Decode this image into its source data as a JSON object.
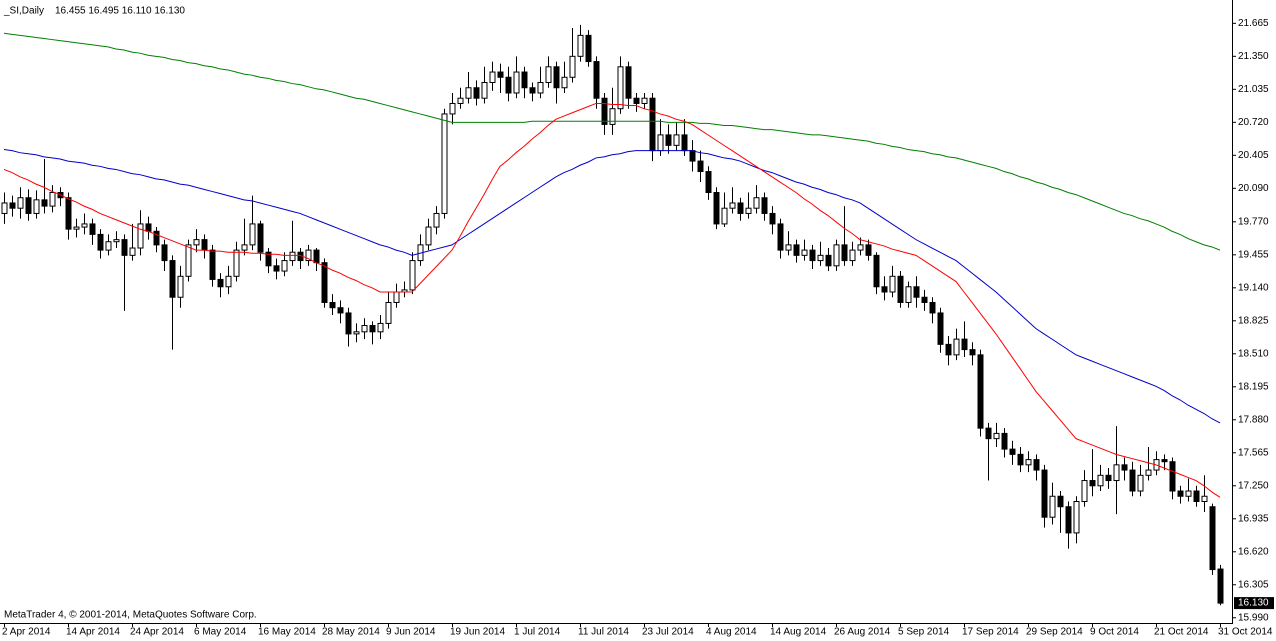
{
  "chart_data": {
    "type": "candlestick",
    "symbol": "_SI,Daily",
    "ohlc_label": "16.455 16.495 16.110 16.130",
    "last_price_label": "16.130",
    "footer": "MetaTrader 4, © 2001-2014, MetaQuotes Software Corp.",
    "up_color": "#ffffff",
    "down_color": "#000000",
    "outline_color": "#000000",
    "grid": false,
    "ylim": [
      15.94,
      21.84
    ],
    "yticks": [
      {
        "value": 15.99,
        "label": "15.990"
      },
      16.305,
      {
        "value": 16.62,
        "label": "16.620"
      },
      16.935,
      {
        "value": 17.25,
        "label": "17.250"
      },
      17.565,
      {
        "value": 17.88,
        "label": "17.880"
      },
      18.195,
      {
        "value": 18.51,
        "label": "18.510"
      },
      18.825,
      {
        "value": 19.14,
        "label": "19.140"
      },
      19.455,
      {
        "value": 19.77,
        "label": "19.770"
      },
      {
        "value": 20.09,
        "label": "20.090"
      },
      20.405,
      {
        "value": 20.72,
        "label": "20.720"
      },
      21.035,
      {
        "value": 21.35,
        "label": "21.350"
      },
      21.665
    ],
    "categories": [
      "2 Apr 2014",
      null,
      null,
      null,
      null,
      null,
      null,
      null,
      "14 Apr 2014",
      null,
      null,
      null,
      null,
      null,
      null,
      null,
      "24 Apr 2014",
      null,
      null,
      null,
      null,
      null,
      null,
      null,
      "6 May 2014",
      null,
      null,
      null,
      null,
      null,
      null,
      null,
      "16 May 2014",
      null,
      null,
      null,
      null,
      null,
      null,
      null,
      "28 May 2014",
      null,
      null,
      null,
      null,
      null,
      null,
      null,
      "9 Jun 2014",
      null,
      null,
      null,
      null,
      null,
      null,
      null,
      "19 Jun 2014",
      null,
      null,
      null,
      null,
      null,
      null,
      null,
      "1 Jul 2014",
      null,
      null,
      null,
      null,
      null,
      null,
      null,
      "11 Jul 2014",
      null,
      null,
      null,
      null,
      null,
      null,
      null,
      "23 Jul 2014",
      null,
      null,
      null,
      null,
      null,
      null,
      null,
      "4 Aug 2014",
      null,
      null,
      null,
      null,
      null,
      null,
      null,
      "14 Aug 2014",
      null,
      null,
      null,
      null,
      null,
      null,
      null,
      "26 Aug 2014",
      null,
      null,
      null,
      null,
      null,
      null,
      null,
      "5 Sep 2014",
      null,
      null,
      null,
      null,
      null,
      null,
      null,
      "17 Sep 2014",
      null,
      null,
      null,
      null,
      null,
      null,
      null,
      "29 Sep 2014",
      null,
      null,
      null,
      null,
      null,
      null,
      null,
      "9 Oct 2014",
      null,
      null,
      null,
      null,
      null,
      null,
      null,
      "21 Oct 2014",
      null,
      null,
      null,
      null,
      null,
      null,
      null,
      "31 Oct 2014"
    ],
    "open": [
      19.85,
      19.95,
      19.9,
      20.0,
      19.85,
      19.98,
      19.92,
      20.05,
      20.0,
      19.7,
      19.72,
      19.75,
      19.65,
      19.5,
      19.58,
      19.6,
      19.45,
      19.52,
      19.75,
      19.68,
      19.55,
      19.4,
      19.05,
      19.25,
      19.55,
      19.6,
      19.5,
      19.22,
      19.15,
      19.25,
      19.5,
      19.55,
      19.75,
      19.48,
      19.35,
      19.3,
      19.4,
      19.48,
      19.4,
      19.5,
      19.38,
      19.0,
      18.95,
      18.9,
      18.7,
      18.72,
      18.78,
      18.72,
      18.8,
      19.0,
      19.1,
      19.12,
      19.4,
      19.55,
      19.72,
      19.85,
      20.8,
      20.9,
      20.95,
      21.05,
      20.95,
      21.1,
      21.2,
      21.15,
      21.0,
      21.2,
      21.05,
      21.0,
      21.1,
      21.25,
      21.05,
      21.15,
      21.35,
      21.55,
      21.3,
      20.95,
      20.7,
      20.85,
      21.25,
      20.95,
      20.9,
      20.95,
      20.45,
      20.6,
      20.5,
      20.6,
      20.45,
      20.35,
      20.25,
      20.05,
      19.75,
      19.9,
      19.95,
      19.85,
      19.9,
      20.0,
      19.85,
      19.75,
      19.5,
      19.55,
      19.45,
      19.5,
      19.4,
      19.45,
      19.35,
      19.55,
      19.4,
      19.5,
      19.55,
      19.45,
      19.15,
      19.1,
      19.25,
      19.0,
      19.15,
      19.05,
      19.0,
      18.9,
      18.6,
      18.5,
      18.65,
      18.55,
      18.5,
      17.8,
      17.7,
      17.75,
      17.6,
      17.55,
      17.45,
      17.5,
      17.4,
      16.95,
      17.15,
      17.05,
      16.8,
      17.1,
      17.3,
      17.25,
      17.35,
      17.3,
      17.45,
      17.4,
      17.2,
      17.35,
      17.4,
      17.5,
      17.48,
      17.2,
      17.15,
      17.2,
      17.1,
      17.05,
      16.455
    ],
    "high": [
      20.05,
      20.02,
      20.1,
      20.08,
      20.07,
      20.37,
      20.12,
      20.1,
      20.05,
      19.8,
      19.85,
      19.8,
      19.7,
      19.65,
      19.68,
      19.65,
      19.75,
      19.88,
      19.82,
      19.72,
      19.6,
      19.45,
      19.35,
      19.6,
      19.7,
      19.65,
      19.55,
      19.28,
      19.35,
      19.58,
      19.8,
      20.02,
      19.78,
      19.52,
      19.42,
      19.48,
      19.78,
      19.52,
      19.55,
      19.52,
      19.42,
      19.08,
      19.02,
      18.95,
      18.8,
      18.85,
      18.82,
      18.88,
      19.1,
      19.18,
      19.2,
      19.48,
      19.65,
      19.8,
      19.92,
      20.85,
      21.0,
      21.05,
      21.2,
      21.12,
      21.25,
      21.3,
      21.28,
      21.25,
      21.35,
      21.25,
      21.1,
      21.25,
      21.35,
      21.3,
      21.3,
      21.62,
      21.65,
      21.6,
      21.35,
      21.0,
      21.05,
      21.35,
      21.3,
      21.0,
      21.0,
      21.0,
      20.75,
      20.7,
      20.72,
      20.75,
      20.55,
      20.45,
      20.3,
      20.1,
      20.05,
      20.1,
      20.0,
      20.05,
      20.12,
      20.05,
      19.92,
      19.8,
      19.68,
      19.6,
      19.6,
      19.55,
      19.58,
      19.52,
      19.6,
      19.92,
      19.58,
      19.62,
      19.6,
      19.48,
      19.25,
      19.35,
      19.3,
      19.2,
      19.25,
      19.12,
      19.05,
      18.95,
      18.68,
      18.75,
      18.82,
      18.62,
      18.55,
      17.85,
      17.85,
      17.8,
      17.68,
      17.62,
      17.58,
      17.55,
      17.45,
      17.28,
      17.2,
      17.1,
      17.15,
      17.4,
      17.6,
      17.45,
      17.42,
      17.82,
      17.52,
      17.48,
      17.45,
      17.62,
      17.58,
      17.55,
      17.52,
      17.25,
      17.32,
      17.25,
      17.35,
      17.08,
      16.495
    ],
    "low": [
      19.75,
      19.82,
      19.8,
      19.78,
      19.8,
      19.85,
      19.86,
      19.92,
      19.6,
      19.62,
      19.65,
      19.55,
      19.42,
      19.45,
      19.52,
      18.92,
      19.4,
      19.45,
      19.6,
      19.48,
      19.3,
      18.55,
      18.95,
      19.2,
      19.48,
      19.42,
      19.15,
      19.05,
      19.08,
      19.2,
      19.45,
      19.5,
      19.4,
      19.28,
      19.22,
      19.25,
      19.35,
      19.32,
      19.35,
      19.3,
      18.95,
      18.88,
      18.8,
      18.58,
      18.62,
      18.65,
      18.6,
      18.65,
      18.75,
      18.95,
      19.05,
      19.08,
      19.35,
      19.5,
      19.65,
      19.8,
      20.7,
      20.85,
      20.9,
      20.88,
      20.9,
      21.02,
      21.0,
      20.92,
      20.95,
      20.95,
      20.92,
      20.95,
      21.05,
      20.9,
      21.0,
      21.1,
      21.3,
      21.25,
      20.85,
      20.6,
      20.6,
      20.8,
      20.85,
      20.82,
      20.85,
      20.35,
      20.4,
      20.42,
      20.45,
      20.4,
      20.25,
      20.15,
      19.98,
      19.7,
      19.72,
      19.85,
      19.78,
      19.8,
      19.85,
      19.78,
      19.65,
      19.42,
      19.45,
      19.38,
      19.4,
      19.32,
      19.35,
      19.3,
      19.3,
      19.35,
      19.35,
      19.45,
      19.4,
      19.08,
      19.02,
      19.05,
      18.95,
      18.95,
      18.95,
      18.92,
      18.8,
      18.52,
      18.4,
      18.45,
      18.48,
      18.4,
      17.72,
      17.3,
      17.62,
      17.52,
      17.45,
      17.38,
      17.38,
      17.3,
      16.85,
      16.88,
      16.8,
      16.65,
      16.7,
      17.05,
      17.15,
      17.2,
      17.22,
      16.98,
      17.3,
      17.15,
      17.15,
      17.3,
      17.35,
      17.4,
      17.12,
      17.08,
      17.1,
      17.05,
      17.0,
      16.4,
      16.11
    ],
    "close": [
      19.95,
      19.9,
      20.0,
      19.85,
      19.98,
      19.92,
      20.05,
      20.0,
      19.7,
      19.72,
      19.75,
      19.65,
      19.5,
      19.58,
      19.6,
      19.45,
      19.52,
      19.75,
      19.68,
      19.55,
      19.4,
      19.05,
      19.25,
      19.55,
      19.6,
      19.5,
      19.22,
      19.15,
      19.25,
      19.5,
      19.55,
      19.75,
      19.48,
      19.35,
      19.3,
      19.4,
      19.48,
      19.4,
      19.5,
      19.38,
      19.0,
      18.95,
      18.9,
      18.7,
      18.72,
      18.78,
      18.72,
      18.8,
      19.0,
      19.1,
      19.12,
      19.4,
      19.55,
      19.72,
      19.85,
      20.8,
      20.9,
      20.95,
      21.05,
      20.95,
      21.1,
      21.2,
      21.15,
      21.0,
      21.2,
      21.05,
      21.0,
      21.1,
      21.25,
      21.05,
      21.15,
      21.35,
      21.55,
      21.3,
      20.95,
      20.7,
      20.85,
      21.25,
      20.95,
      20.9,
      20.95,
      20.45,
      20.6,
      20.5,
      20.6,
      20.45,
      20.35,
      20.25,
      20.05,
      19.75,
      19.9,
      19.95,
      19.85,
      19.9,
      20.0,
      19.85,
      19.75,
      19.5,
      19.55,
      19.45,
      19.5,
      19.4,
      19.45,
      19.35,
      19.55,
      19.4,
      19.5,
      19.55,
      19.45,
      19.15,
      19.1,
      19.25,
      19.0,
      19.15,
      19.05,
      19.0,
      18.9,
      18.6,
      18.5,
      18.65,
      18.55,
      18.5,
      17.8,
      17.7,
      17.75,
      17.6,
      17.55,
      17.45,
      17.5,
      17.4,
      16.95,
      17.15,
      17.05,
      16.8,
      17.1,
      17.3,
      17.25,
      17.35,
      17.3,
      17.45,
      17.4,
      17.2,
      17.35,
      17.4,
      17.5,
      17.48,
      17.2,
      17.15,
      17.2,
      17.1,
      17.15,
      16.45,
      16.13
    ],
    "series": [
      {
        "color": "#008000",
        "values": [
          21.57,
          21.56,
          21.55,
          21.54,
          21.53,
          21.52,
          21.51,
          21.5,
          21.49,
          21.48,
          21.47,
          21.46,
          21.45,
          21.44,
          21.42,
          21.41,
          21.39,
          21.38,
          21.36,
          21.35,
          21.34,
          21.32,
          21.31,
          21.29,
          21.28,
          21.26,
          21.25,
          21.23,
          21.22,
          21.2,
          21.18,
          21.17,
          21.15,
          21.14,
          21.12,
          21.11,
          21.09,
          21.08,
          21.06,
          21.04,
          21.03,
          21.01,
          20.99,
          20.97,
          20.95,
          20.94,
          20.92,
          20.9,
          20.88,
          20.86,
          20.84,
          20.82,
          20.8,
          20.78,
          20.76,
          20.74,
          20.72,
          20.72,
          20.72,
          20.72,
          20.72,
          20.72,
          20.72,
          20.72,
          20.72,
          20.72,
          20.73,
          20.73,
          20.73,
          20.73,
          20.73,
          20.73,
          20.73,
          20.73,
          20.73,
          20.73,
          20.73,
          20.73,
          20.73,
          20.73,
          20.73,
          20.73,
          20.73,
          20.72,
          20.72,
          20.72,
          20.72,
          20.71,
          20.71,
          20.7,
          20.69,
          20.69,
          20.68,
          20.67,
          20.66,
          20.65,
          20.65,
          20.64,
          20.63,
          20.62,
          20.61,
          20.6,
          20.6,
          20.59,
          20.58,
          20.57,
          20.56,
          20.55,
          20.54,
          20.52,
          20.51,
          20.49,
          20.48,
          20.46,
          20.45,
          20.44,
          20.42,
          20.41,
          20.39,
          20.38,
          20.36,
          20.34,
          20.32,
          20.3,
          20.28,
          20.25,
          20.23,
          20.2,
          20.18,
          20.15,
          20.13,
          20.1,
          20.08,
          20.05,
          20.03,
          20.0,
          19.97,
          19.94,
          19.91,
          19.88,
          19.85,
          19.83,
          19.8,
          19.78,
          19.75,
          19.72,
          19.68,
          19.65,
          19.61,
          19.58,
          19.55,
          19.53,
          19.5
        ]
      },
      {
        "color": "#0000cc",
        "values": [
          20.46,
          20.45,
          20.43,
          20.42,
          20.41,
          20.39,
          20.38,
          20.37,
          20.35,
          20.34,
          20.33,
          20.31,
          20.3,
          20.28,
          20.27,
          20.25,
          20.23,
          20.22,
          20.2,
          20.18,
          20.17,
          20.15,
          20.13,
          20.12,
          20.1,
          20.08,
          20.06,
          20.04,
          20.02,
          20.0,
          19.98,
          19.97,
          19.95,
          19.93,
          19.91,
          19.89,
          19.87,
          19.85,
          19.82,
          19.79,
          19.76,
          19.73,
          19.7,
          19.67,
          19.64,
          19.61,
          19.58,
          19.55,
          19.53,
          19.5,
          19.48,
          19.45,
          19.47,
          19.49,
          19.51,
          19.53,
          19.55,
          19.6,
          19.65,
          19.7,
          19.75,
          19.8,
          19.85,
          19.9,
          19.95,
          20.0,
          20.05,
          20.1,
          20.15,
          20.2,
          20.24,
          20.27,
          20.31,
          20.34,
          20.38,
          20.39,
          20.41,
          20.42,
          20.44,
          20.45,
          20.45,
          20.45,
          20.45,
          20.45,
          20.45,
          20.45,
          20.45,
          20.43,
          20.42,
          20.4,
          20.38,
          20.37,
          20.35,
          20.32,
          20.29,
          20.26,
          20.24,
          20.21,
          20.18,
          20.15,
          20.13,
          20.1,
          20.08,
          20.05,
          20.03,
          20.0,
          19.98,
          19.95,
          19.9,
          19.85,
          19.8,
          19.75,
          19.7,
          19.65,
          19.6,
          19.56,
          19.52,
          19.48,
          19.44,
          19.4,
          19.34,
          19.28,
          19.22,
          19.16,
          19.1,
          19.03,
          18.96,
          18.89,
          18.82,
          18.75,
          18.7,
          18.65,
          18.6,
          18.55,
          18.5,
          18.47,
          18.44,
          18.41,
          18.38,
          18.35,
          18.32,
          18.29,
          18.26,
          18.23,
          18.2,
          18.16,
          18.11,
          18.07,
          18.02,
          17.98,
          17.94,
          17.89,
          17.85
        ]
      },
      {
        "color": "#ff0000",
        "values": [
          20.27,
          20.24,
          20.2,
          20.17,
          20.13,
          20.1,
          20.06,
          20.03,
          19.99,
          19.96,
          19.92,
          19.89,
          19.85,
          19.82,
          19.79,
          19.76,
          19.73,
          19.7,
          19.68,
          19.65,
          19.62,
          19.59,
          19.56,
          19.53,
          19.5,
          19.5,
          19.49,
          19.49,
          19.48,
          19.48,
          19.48,
          19.47,
          19.47,
          19.46,
          19.46,
          19.45,
          19.45,
          19.45,
          19.42,
          19.38,
          19.35,
          19.31,
          19.28,
          19.24,
          19.21,
          19.17,
          19.14,
          19.1,
          19.1,
          19.1,
          19.1,
          19.1,
          19.18,
          19.26,
          19.34,
          19.42,
          19.5,
          19.63,
          19.77,
          19.9,
          20.03,
          20.17,
          20.3,
          20.36,
          20.43,
          20.49,
          20.56,
          20.62,
          20.69,
          20.75,
          20.78,
          20.81,
          20.84,
          20.87,
          20.9,
          20.9,
          20.89,
          20.89,
          20.88,
          20.88,
          20.85,
          20.83,
          20.8,
          20.78,
          20.75,
          20.73,
          20.7,
          20.65,
          20.6,
          20.55,
          20.5,
          20.45,
          20.4,
          20.35,
          20.3,
          20.25,
          20.2,
          20.15,
          20.1,
          20.05,
          19.99,
          19.94,
          19.88,
          19.83,
          19.77,
          19.71,
          19.66,
          19.6,
          19.58,
          19.56,
          19.54,
          19.51,
          19.49,
          19.47,
          19.45,
          19.4,
          19.35,
          19.3,
          19.25,
          19.2,
          19.1,
          19.0,
          18.9,
          18.8,
          18.7,
          18.59,
          18.48,
          18.37,
          18.26,
          18.15,
          18.06,
          17.97,
          17.88,
          17.79,
          17.7,
          17.67,
          17.64,
          17.61,
          17.58,
          17.55,
          17.53,
          17.51,
          17.49,
          17.47,
          17.45,
          17.42,
          17.39,
          17.36,
          17.33,
          17.3,
          17.25,
          17.19,
          17.14
        ]
      }
    ]
  }
}
